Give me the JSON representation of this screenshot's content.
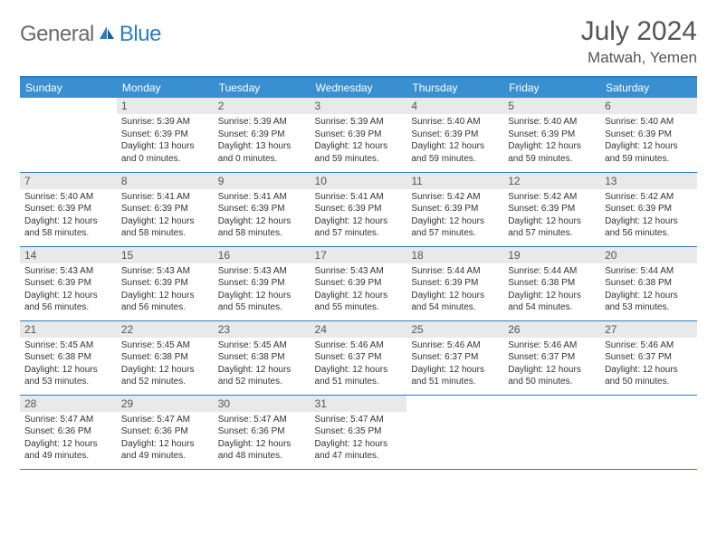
{
  "brand": {
    "part1": "General",
    "part2": "Blue"
  },
  "title": "July 2024",
  "location": "Matwah, Yemen",
  "colors": {
    "header_bg": "#3a8fd0",
    "border": "#2b7ec2",
    "daynum_bg": "#e9e9e9",
    "text": "#333333",
    "muted": "#555555",
    "white": "#ffffff"
  },
  "day_headers": [
    "Sunday",
    "Monday",
    "Tuesday",
    "Wednesday",
    "Thursday",
    "Friday",
    "Saturday"
  ],
  "weeks": [
    [
      {
        "n": "",
        "sr": "",
        "ss": "",
        "dl": ""
      },
      {
        "n": "1",
        "sr": "Sunrise: 5:39 AM",
        "ss": "Sunset: 6:39 PM",
        "dl": "Daylight: 13 hours and 0 minutes."
      },
      {
        "n": "2",
        "sr": "Sunrise: 5:39 AM",
        "ss": "Sunset: 6:39 PM",
        "dl": "Daylight: 13 hours and 0 minutes."
      },
      {
        "n": "3",
        "sr": "Sunrise: 5:39 AM",
        "ss": "Sunset: 6:39 PM",
        "dl": "Daylight: 12 hours and 59 minutes."
      },
      {
        "n": "4",
        "sr": "Sunrise: 5:40 AM",
        "ss": "Sunset: 6:39 PM",
        "dl": "Daylight: 12 hours and 59 minutes."
      },
      {
        "n": "5",
        "sr": "Sunrise: 5:40 AM",
        "ss": "Sunset: 6:39 PM",
        "dl": "Daylight: 12 hours and 59 minutes."
      },
      {
        "n": "6",
        "sr": "Sunrise: 5:40 AM",
        "ss": "Sunset: 6:39 PM",
        "dl": "Daylight: 12 hours and 59 minutes."
      }
    ],
    [
      {
        "n": "7",
        "sr": "Sunrise: 5:40 AM",
        "ss": "Sunset: 6:39 PM",
        "dl": "Daylight: 12 hours and 58 minutes."
      },
      {
        "n": "8",
        "sr": "Sunrise: 5:41 AM",
        "ss": "Sunset: 6:39 PM",
        "dl": "Daylight: 12 hours and 58 minutes."
      },
      {
        "n": "9",
        "sr": "Sunrise: 5:41 AM",
        "ss": "Sunset: 6:39 PM",
        "dl": "Daylight: 12 hours and 58 minutes."
      },
      {
        "n": "10",
        "sr": "Sunrise: 5:41 AM",
        "ss": "Sunset: 6:39 PM",
        "dl": "Daylight: 12 hours and 57 minutes."
      },
      {
        "n": "11",
        "sr": "Sunrise: 5:42 AM",
        "ss": "Sunset: 6:39 PM",
        "dl": "Daylight: 12 hours and 57 minutes."
      },
      {
        "n": "12",
        "sr": "Sunrise: 5:42 AM",
        "ss": "Sunset: 6:39 PM",
        "dl": "Daylight: 12 hours and 57 minutes."
      },
      {
        "n": "13",
        "sr": "Sunrise: 5:42 AM",
        "ss": "Sunset: 6:39 PM",
        "dl": "Daylight: 12 hours and 56 minutes."
      }
    ],
    [
      {
        "n": "14",
        "sr": "Sunrise: 5:43 AM",
        "ss": "Sunset: 6:39 PM",
        "dl": "Daylight: 12 hours and 56 minutes."
      },
      {
        "n": "15",
        "sr": "Sunrise: 5:43 AM",
        "ss": "Sunset: 6:39 PM",
        "dl": "Daylight: 12 hours and 56 minutes."
      },
      {
        "n": "16",
        "sr": "Sunrise: 5:43 AM",
        "ss": "Sunset: 6:39 PM",
        "dl": "Daylight: 12 hours and 55 minutes."
      },
      {
        "n": "17",
        "sr": "Sunrise: 5:43 AM",
        "ss": "Sunset: 6:39 PM",
        "dl": "Daylight: 12 hours and 55 minutes."
      },
      {
        "n": "18",
        "sr": "Sunrise: 5:44 AM",
        "ss": "Sunset: 6:39 PM",
        "dl": "Daylight: 12 hours and 54 minutes."
      },
      {
        "n": "19",
        "sr": "Sunrise: 5:44 AM",
        "ss": "Sunset: 6:38 PM",
        "dl": "Daylight: 12 hours and 54 minutes."
      },
      {
        "n": "20",
        "sr": "Sunrise: 5:44 AM",
        "ss": "Sunset: 6:38 PM",
        "dl": "Daylight: 12 hours and 53 minutes."
      }
    ],
    [
      {
        "n": "21",
        "sr": "Sunrise: 5:45 AM",
        "ss": "Sunset: 6:38 PM",
        "dl": "Daylight: 12 hours and 53 minutes."
      },
      {
        "n": "22",
        "sr": "Sunrise: 5:45 AM",
        "ss": "Sunset: 6:38 PM",
        "dl": "Daylight: 12 hours and 52 minutes."
      },
      {
        "n": "23",
        "sr": "Sunrise: 5:45 AM",
        "ss": "Sunset: 6:38 PM",
        "dl": "Daylight: 12 hours and 52 minutes."
      },
      {
        "n": "24",
        "sr": "Sunrise: 5:46 AM",
        "ss": "Sunset: 6:37 PM",
        "dl": "Daylight: 12 hours and 51 minutes."
      },
      {
        "n": "25",
        "sr": "Sunrise: 5:46 AM",
        "ss": "Sunset: 6:37 PM",
        "dl": "Daylight: 12 hours and 51 minutes."
      },
      {
        "n": "26",
        "sr": "Sunrise: 5:46 AM",
        "ss": "Sunset: 6:37 PM",
        "dl": "Daylight: 12 hours and 50 minutes."
      },
      {
        "n": "27",
        "sr": "Sunrise: 5:46 AM",
        "ss": "Sunset: 6:37 PM",
        "dl": "Daylight: 12 hours and 50 minutes."
      }
    ],
    [
      {
        "n": "28",
        "sr": "Sunrise: 5:47 AM",
        "ss": "Sunset: 6:36 PM",
        "dl": "Daylight: 12 hours and 49 minutes."
      },
      {
        "n": "29",
        "sr": "Sunrise: 5:47 AM",
        "ss": "Sunset: 6:36 PM",
        "dl": "Daylight: 12 hours and 49 minutes."
      },
      {
        "n": "30",
        "sr": "Sunrise: 5:47 AM",
        "ss": "Sunset: 6:36 PM",
        "dl": "Daylight: 12 hours and 48 minutes."
      },
      {
        "n": "31",
        "sr": "Sunrise: 5:47 AM",
        "ss": "Sunset: 6:35 PM",
        "dl": "Daylight: 12 hours and 47 minutes."
      },
      {
        "n": "",
        "sr": "",
        "ss": "",
        "dl": ""
      },
      {
        "n": "",
        "sr": "",
        "ss": "",
        "dl": ""
      },
      {
        "n": "",
        "sr": "",
        "ss": "",
        "dl": ""
      }
    ]
  ]
}
